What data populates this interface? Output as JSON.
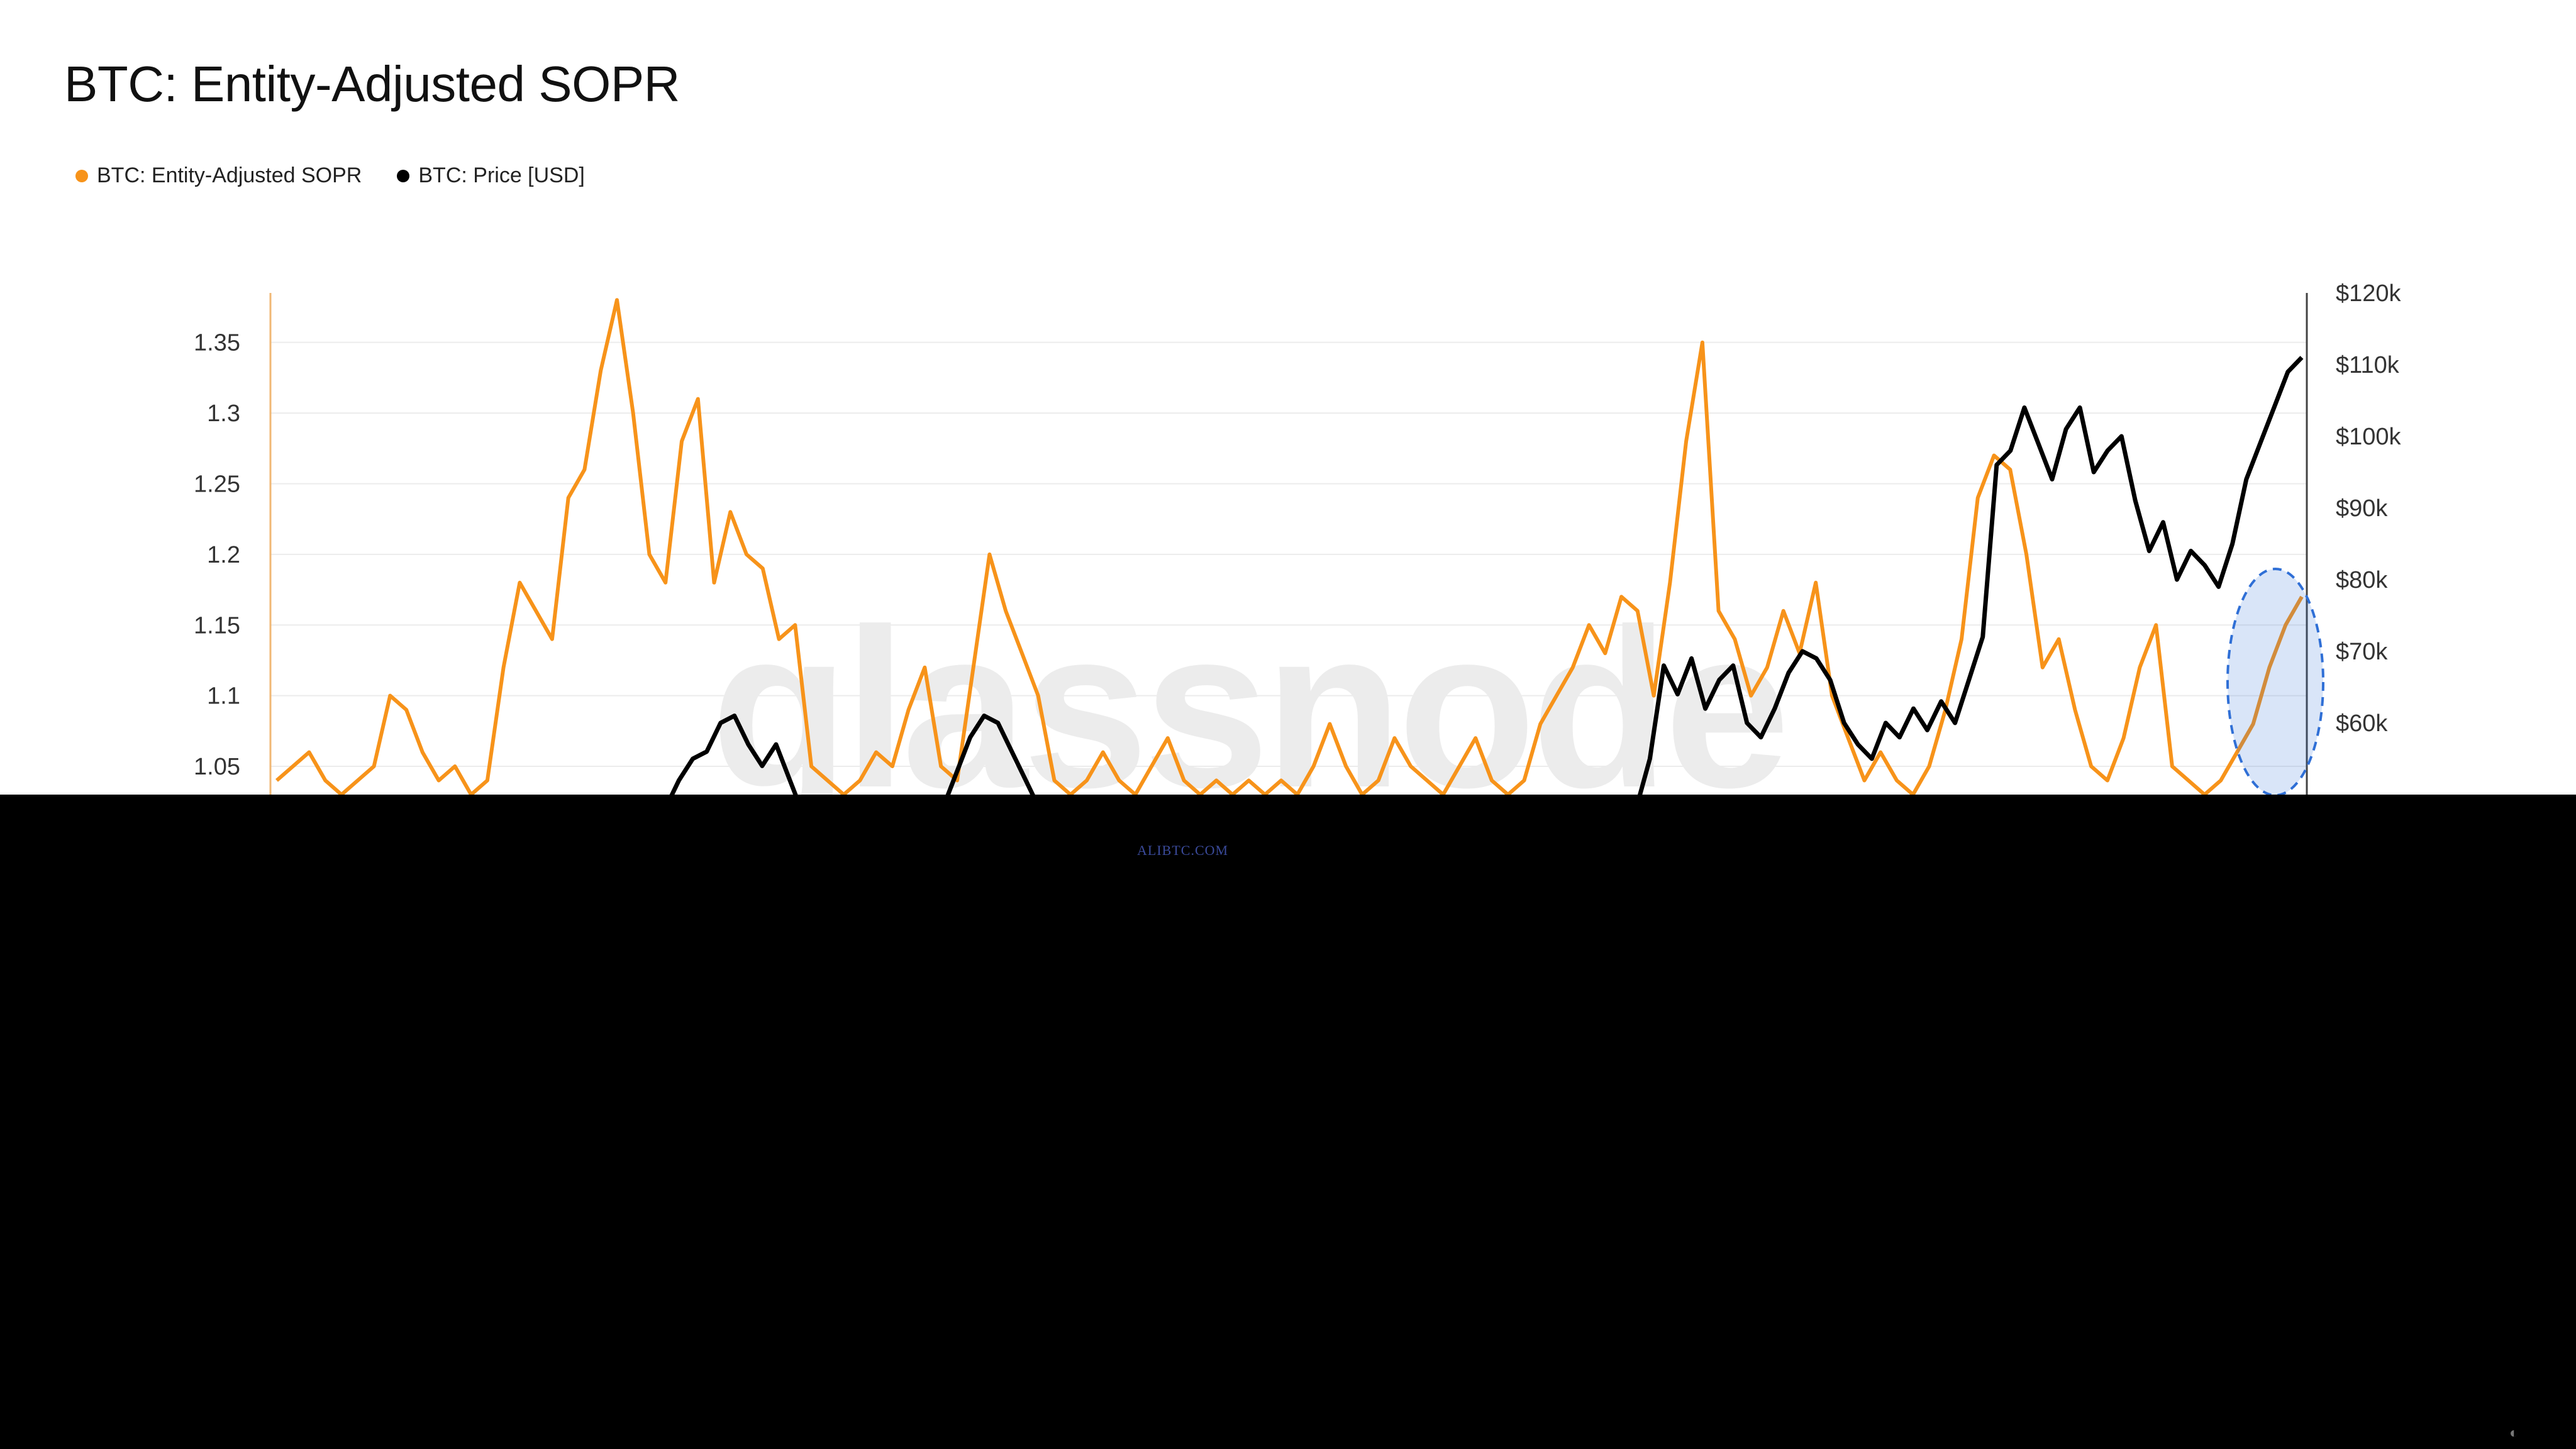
{
  "page": {
    "footer_text": "ALIBTC.COM"
  },
  "chart_data": {
    "type": "line",
    "title": "BTC: Entity-Adjusted SOPR",
    "watermark": "glassnode",
    "legend": [
      {
        "name": "BTC: Entity-Adjusted SOPR",
        "color": "#f7931a"
      },
      {
        "name": "BTC: Price [USD]",
        "color": "#000000"
      }
    ],
    "left_axis": {
      "ticks": [
        "1.35",
        "1.3",
        "1.25",
        "1.2",
        "1.15",
        "1.1",
        "1.05"
      ],
      "range": [
        1.03,
        1.385
      ]
    },
    "right_axis": {
      "ticks": [
        "$120k",
        "$110k",
        "$100k",
        "$90k",
        "$80k",
        "$70k",
        "$60k"
      ],
      "range": [
        50000,
        120000
      ]
    },
    "highlight": {
      "shape": "dashed-ellipse",
      "color": "#2f6fd6"
    },
    "series": [
      {
        "name": "BTC: Entity-Adjusted SOPR",
        "axis": "left",
        "color": "#f7931a",
        "values": [
          1.04,
          1.05,
          1.06,
          1.04,
          1.03,
          1.04,
          1.05,
          1.1,
          1.09,
          1.06,
          1.04,
          1.05,
          1.03,
          1.04,
          1.12,
          1.18,
          1.16,
          1.14,
          1.24,
          1.26,
          1.33,
          1.38,
          1.3,
          1.2,
          1.18,
          1.28,
          1.31,
          1.18,
          1.23,
          1.2,
          1.19,
          1.14,
          1.15,
          1.05,
          1.04,
          1.03,
          1.04,
          1.06,
          1.05,
          1.09,
          1.12,
          1.05,
          1.04,
          1.12,
          1.2,
          1.16,
          1.13,
          1.1,
          1.04,
          1.03,
          1.04,
          1.06,
          1.04,
          1.03,
          1.05,
          1.07,
          1.04,
          1.03,
          1.04,
          1.03,
          1.04,
          1.03,
          1.04,
          1.03,
          1.05,
          1.08,
          1.05,
          1.03,
          1.04,
          1.07,
          1.05,
          1.04,
          1.03,
          1.05,
          1.07,
          1.04,
          1.03,
          1.04,
          1.08,
          1.1,
          1.12,
          1.15,
          1.13,
          1.17,
          1.16,
          1.1,
          1.18,
          1.28,
          1.35,
          1.16,
          1.14,
          1.1,
          1.12,
          1.16,
          1.13,
          1.18,
          1.1,
          1.07,
          1.04,
          1.06,
          1.04,
          1.03,
          1.05,
          1.09,
          1.14,
          1.24,
          1.27,
          1.26,
          1.2,
          1.12,
          1.14,
          1.09,
          1.05,
          1.04,
          1.07,
          1.12,
          1.15,
          1.05,
          1.04,
          1.03,
          1.04,
          1.06,
          1.08,
          1.12,
          1.15,
          1.17
        ]
      },
      {
        "name": "BTC: Price [USD]",
        "axis": "right",
        "color": "#000000",
        "values": [
          47000,
          47000,
          47000,
          47000,
          47000,
          47000,
          47000,
          47000,
          47000,
          47000,
          47000,
          47000,
          47000,
          47000,
          47000,
          47000,
          47000,
          47000,
          47000,
          47000,
          47000,
          47000,
          47000,
          47000,
          47000,
          47000,
          47000,
          47000,
          48000,
          52000,
          55000,
          56000,
          60000,
          61000,
          57000,
          54000,
          57000,
          52000,
          47000,
          47000,
          47000,
          47000,
          47000,
          47000,
          47000,
          47000,
          47000,
          47000,
          48000,
          53000,
          58000,
          61000,
          60000,
          56000,
          52000,
          48000,
          47000,
          47000,
          47000,
          47000,
          47000,
          47000,
          47000,
          47000,
          47000,
          47000,
          47000,
          47000,
          47000,
          47000,
          47000,
          47000,
          47000,
          47000,
          47000,
          47000,
          47000,
          47000,
          47000,
          47000,
          47000,
          47000,
          47000,
          47000,
          47000,
          47000,
          47000,
          47000,
          47000,
          47000,
          47000,
          47000,
          47000,
          47000,
          47000,
          47000,
          47000,
          47000,
          48000,
          55000,
          68000,
          64000,
          69000,
          62000,
          66000,
          68000,
          60000,
          58000,
          62000,
          67000,
          70000,
          69000,
          66000,
          60000,
          57000,
          55000,
          60000,
          58000,
          62000,
          59000,
          63000,
          60000,
          66000,
          72000,
          96000,
          98000,
          104000,
          99000,
          94000,
          101000,
          104000,
          95000,
          98000,
          100000,
          91000,
          84000,
          88000,
          80000,
          84000,
          82000,
          79000,
          85000,
          94000,
          99000,
          104000,
          109000,
          111000
        ]
      }
    ]
  }
}
